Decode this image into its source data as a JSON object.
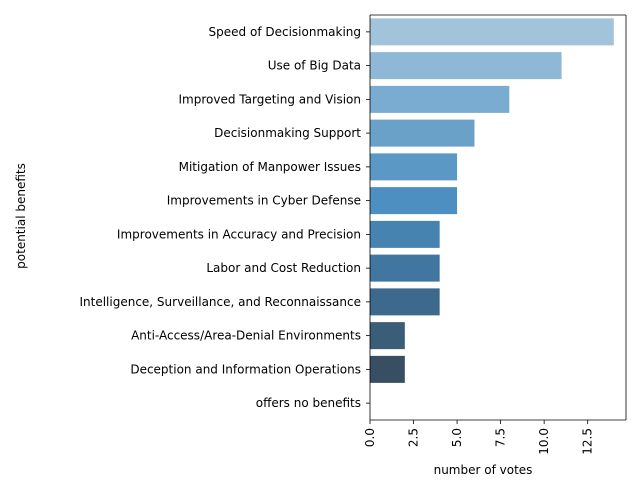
{
  "chart_data": {
    "type": "bar",
    "orientation": "horizontal",
    "xlabel": "number of votes",
    "ylabel": "potential benefits",
    "xlim": [
      0,
      14.7
    ],
    "xticks": [
      0.0,
      2.5,
      5.0,
      7.5,
      10.0,
      12.5
    ],
    "xtick_labels": [
      "0.0",
      "2.5",
      "5.0",
      "7.5",
      "10.0",
      "12.5"
    ],
    "grid": false,
    "categories": [
      "Speed of Decisionmaking",
      "Use of Big Data",
      "Improved Targeting and Vision",
      "Decisionmaking Support",
      "Mitigation of Manpower Issues",
      "Improvements in Cyber Defense",
      "Improvements in Accuracy and Precision",
      "Labor and Cost Reduction",
      "Intelligence, Surveillance, and Reconnaissance",
      "Anti-Access/Area-Denial Environments",
      "Deception and Information Operations",
      "offers no benefits"
    ],
    "values": [
      14,
      11,
      8,
      6,
      5,
      5,
      4,
      4,
      4,
      2,
      2,
      0
    ],
    "colors": [
      "#a2c3dc",
      "#8fb7d6",
      "#7aabd0",
      "#6aa1c9",
      "#5b98c5",
      "#4d8fc0",
      "#4783b0",
      "#4176a0",
      "#3d6a8c",
      "#3b5e78",
      "#384f63",
      "#36454f"
    ]
  }
}
